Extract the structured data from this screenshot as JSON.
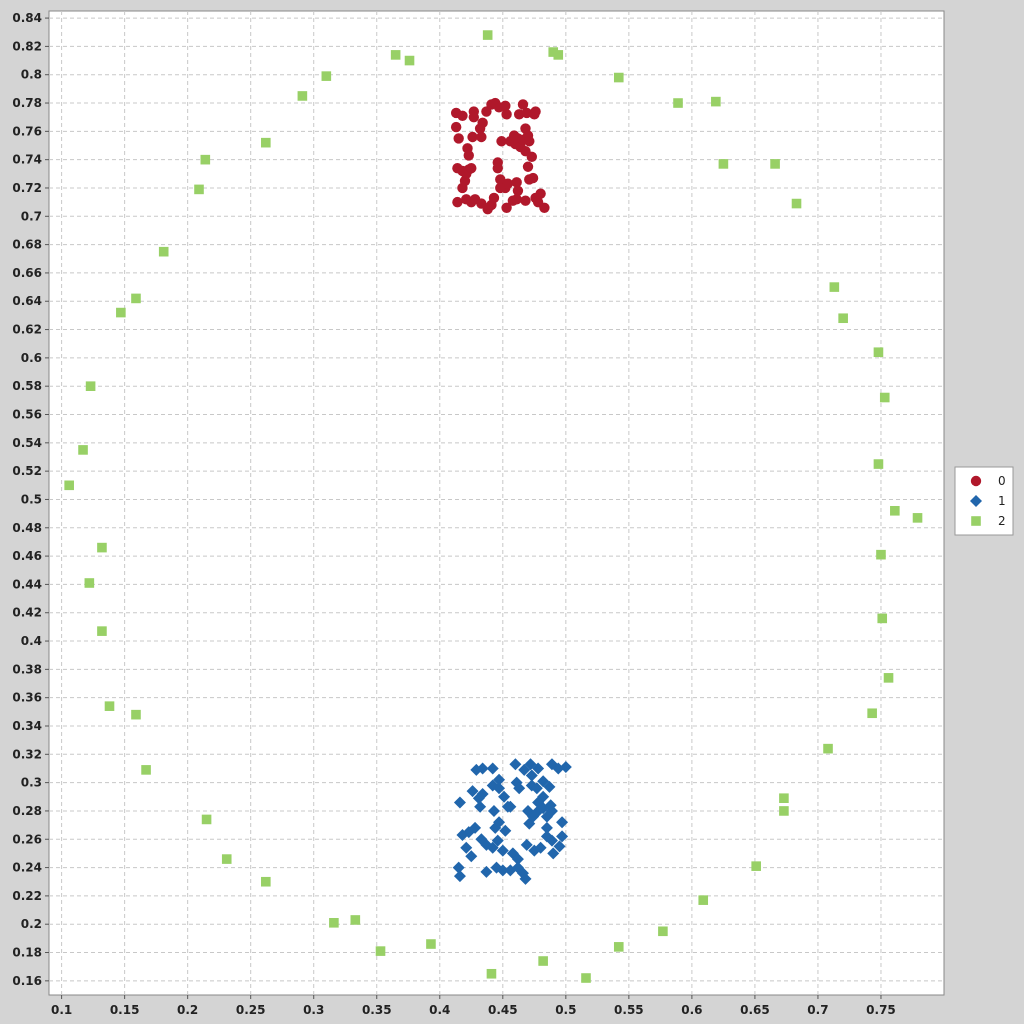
{
  "chart_data": {
    "type": "scatter",
    "title": "",
    "xlabel": "",
    "ylabel": "",
    "xlim": [
      0.09,
      0.8
    ],
    "ylim": [
      0.15,
      0.845
    ],
    "x_ticks": [
      0.1,
      0.15,
      0.2,
      0.25,
      0.3,
      0.35,
      0.4,
      0.45,
      0.5,
      0.55,
      0.6,
      0.65,
      0.7,
      0.75
    ],
    "x_tick_labels": [
      "0.1",
      "0.15",
      "0.2",
      "0.25",
      "0.3",
      "0.35",
      "0.4",
      "0.45",
      "0.5",
      "0.55",
      "0.6",
      "0.65",
      "0.7",
      "0.75"
    ],
    "y_ticks": [
      0.16,
      0.18,
      0.2,
      0.22,
      0.24,
      0.26,
      0.28,
      0.3,
      0.32,
      0.34,
      0.36,
      0.38,
      0.4,
      0.42,
      0.44,
      0.46,
      0.48,
      0.5,
      0.52,
      0.54,
      0.56,
      0.58,
      0.6,
      0.62,
      0.64,
      0.66,
      0.68,
      0.7,
      0.72,
      0.74,
      0.76,
      0.78,
      0.8,
      0.82,
      0.84
    ],
    "y_tick_labels": [
      "0.16",
      "0.18",
      "0.2",
      "0.22",
      "0.24",
      "0.26",
      "0.28",
      "0.3",
      "0.32",
      "0.34",
      "0.36",
      "0.38",
      "0.4",
      "0.42",
      "0.44",
      "0.46",
      "0.48",
      "0.5",
      "0.52",
      "0.54",
      "0.56",
      "0.58",
      "0.6",
      "0.62",
      "0.64",
      "0.66",
      "0.68",
      "0.7",
      "0.72",
      "0.74",
      "0.76",
      "0.78",
      "0.8",
      "0.82",
      "0.84"
    ],
    "grid": true,
    "legend_position": "right",
    "series": [
      {
        "name": "0",
        "marker": "circle",
        "color": "#b0182b",
        "points": [
          [
            0.413,
            0.773
          ],
          [
            0.418,
            0.771
          ],
          [
            0.427,
            0.774
          ],
          [
            0.427,
            0.77
          ],
          [
            0.437,
            0.774
          ],
          [
            0.441,
            0.779
          ],
          [
            0.444,
            0.78
          ],
          [
            0.447,
            0.777
          ],
          [
            0.452,
            0.778
          ],
          [
            0.453,
            0.772
          ],
          [
            0.463,
            0.772
          ],
          [
            0.466,
            0.779
          ],
          [
            0.469,
            0.773
          ],
          [
            0.475,
            0.772
          ],
          [
            0.476,
            0.774
          ],
          [
            0.413,
            0.763
          ],
          [
            0.415,
            0.755
          ],
          [
            0.422,
            0.748
          ],
          [
            0.423,
            0.743
          ],
          [
            0.426,
            0.756
          ],
          [
            0.432,
            0.762
          ],
          [
            0.434,
            0.766
          ],
          [
            0.433,
            0.756
          ],
          [
            0.449,
            0.753
          ],
          [
            0.456,
            0.753
          ],
          [
            0.459,
            0.757
          ],
          [
            0.46,
            0.751
          ],
          [
            0.462,
            0.755
          ],
          [
            0.464,
            0.749
          ],
          [
            0.466,
            0.754
          ],
          [
            0.468,
            0.762
          ],
          [
            0.47,
            0.757
          ],
          [
            0.471,
            0.753
          ],
          [
            0.468,
            0.746
          ],
          [
            0.473,
            0.742
          ],
          [
            0.414,
            0.734
          ],
          [
            0.418,
            0.732
          ],
          [
            0.418,
            0.72
          ],
          [
            0.42,
            0.725
          ],
          [
            0.421,
            0.73
          ],
          [
            0.423,
            0.733
          ],
          [
            0.425,
            0.734
          ],
          [
            0.446,
            0.738
          ],
          [
            0.446,
            0.734
          ],
          [
            0.448,
            0.726
          ],
          [
            0.452,
            0.72
          ],
          [
            0.454,
            0.723
          ],
          [
            0.461,
            0.724
          ],
          [
            0.462,
            0.718
          ],
          [
            0.47,
            0.735
          ],
          [
            0.471,
            0.726
          ],
          [
            0.474,
            0.727
          ],
          [
            0.414,
            0.71
          ],
          [
            0.421,
            0.712
          ],
          [
            0.425,
            0.71
          ],
          [
            0.428,
            0.712
          ],
          [
            0.433,
            0.709
          ],
          [
            0.438,
            0.705
          ],
          [
            0.441,
            0.708
          ],
          [
            0.443,
            0.713
          ],
          [
            0.448,
            0.72
          ],
          [
            0.453,
            0.706
          ],
          [
            0.458,
            0.711
          ],
          [
            0.461,
            0.712
          ],
          [
            0.468,
            0.711
          ],
          [
            0.476,
            0.713
          ],
          [
            0.478,
            0.71
          ],
          [
            0.48,
            0.716
          ],
          [
            0.483,
            0.706
          ]
        ]
      },
      {
        "name": "1",
        "marker": "diamond",
        "color": "#2166ac",
        "points": [
          [
            0.429,
            0.309
          ],
          [
            0.434,
            0.31
          ],
          [
            0.442,
            0.31
          ],
          [
            0.46,
            0.313
          ],
          [
            0.467,
            0.309
          ],
          [
            0.472,
            0.313
          ],
          [
            0.478,
            0.31
          ],
          [
            0.489,
            0.313
          ],
          [
            0.494,
            0.31
          ],
          [
            0.5,
            0.311
          ],
          [
            0.416,
            0.286
          ],
          [
            0.426,
            0.294
          ],
          [
            0.431,
            0.289
          ],
          [
            0.434,
            0.292
          ],
          [
            0.442,
            0.298
          ],
          [
            0.447,
            0.302
          ],
          [
            0.447,
            0.296
          ],
          [
            0.451,
            0.29
          ],
          [
            0.454,
            0.283
          ],
          [
            0.461,
            0.3
          ],
          [
            0.463,
            0.296
          ],
          [
            0.473,
            0.305
          ],
          [
            0.473,
            0.298
          ],
          [
            0.477,
            0.296
          ],
          [
            0.482,
            0.301
          ],
          [
            0.487,
            0.297
          ],
          [
            0.482,
            0.29
          ],
          [
            0.488,
            0.284
          ],
          [
            0.432,
            0.283
          ],
          [
            0.443,
            0.28
          ],
          [
            0.444,
            0.268
          ],
          [
            0.447,
            0.272
          ],
          [
            0.452,
            0.266
          ],
          [
            0.456,
            0.283
          ],
          [
            0.47,
            0.28
          ],
          [
            0.471,
            0.271
          ],
          [
            0.474,
            0.276
          ],
          [
            0.477,
            0.279
          ],
          [
            0.478,
            0.286
          ],
          [
            0.482,
            0.282
          ],
          [
            0.485,
            0.276
          ],
          [
            0.485,
            0.268
          ],
          [
            0.489,
            0.28
          ],
          [
            0.497,
            0.272
          ],
          [
            0.418,
            0.263
          ],
          [
            0.423,
            0.265
          ],
          [
            0.428,
            0.268
          ],
          [
            0.433,
            0.26
          ],
          [
            0.437,
            0.256
          ],
          [
            0.446,
            0.259
          ],
          [
            0.442,
            0.254
          ],
          [
            0.45,
            0.252
          ],
          [
            0.458,
            0.25
          ],
          [
            0.462,
            0.246
          ],
          [
            0.469,
            0.256
          ],
          [
            0.475,
            0.252
          ],
          [
            0.48,
            0.254
          ],
          [
            0.485,
            0.262
          ],
          [
            0.489,
            0.259
          ],
          [
            0.495,
            0.255
          ],
          [
            0.497,
            0.262
          ],
          [
            0.49,
            0.25
          ],
          [
            0.415,
            0.24
          ],
          [
            0.416,
            0.234
          ],
          [
            0.421,
            0.254
          ],
          [
            0.425,
            0.248
          ],
          [
            0.437,
            0.237
          ],
          [
            0.445,
            0.24
          ],
          [
            0.45,
            0.238
          ],
          [
            0.456,
            0.238
          ],
          [
            0.462,
            0.24
          ],
          [
            0.466,
            0.236
          ],
          [
            0.468,
            0.232
          ]
        ]
      },
      {
        "name": "2",
        "marker": "square",
        "color": "#98d066",
        "points": [
          [
            0.438,
            0.828
          ],
          [
            0.49,
            0.816
          ],
          [
            0.494,
            0.814
          ],
          [
            0.365,
            0.814
          ],
          [
            0.376,
            0.81
          ],
          [
            0.542,
            0.798
          ],
          [
            0.31,
            0.799
          ],
          [
            0.291,
            0.785
          ],
          [
            0.589,
            0.78
          ],
          [
            0.619,
            0.781
          ],
          [
            0.262,
            0.752
          ],
          [
            0.214,
            0.74
          ],
          [
            0.625,
            0.737
          ],
          [
            0.666,
            0.737
          ],
          [
            0.209,
            0.719
          ],
          [
            0.683,
            0.709
          ],
          [
            0.181,
            0.675
          ],
          [
            0.713,
            0.65
          ],
          [
            0.159,
            0.642
          ],
          [
            0.147,
            0.632
          ],
          [
            0.72,
            0.628
          ],
          [
            0.748,
            0.604
          ],
          [
            0.123,
            0.58
          ],
          [
            0.753,
            0.572
          ],
          [
            0.117,
            0.535
          ],
          [
            0.748,
            0.525
          ],
          [
            0.106,
            0.51
          ],
          [
            0.761,
            0.492
          ],
          [
            0.779,
            0.487
          ],
          [
            0.132,
            0.466
          ],
          [
            0.75,
            0.461
          ],
          [
            0.122,
            0.441
          ],
          [
            0.751,
            0.416
          ],
          [
            0.132,
            0.407
          ],
          [
            0.756,
            0.374
          ],
          [
            0.138,
            0.354
          ],
          [
            0.159,
            0.348
          ],
          [
            0.743,
            0.349
          ],
          [
            0.708,
            0.324
          ],
          [
            0.167,
            0.309
          ],
          [
            0.673,
            0.289
          ],
          [
            0.673,
            0.28
          ],
          [
            0.215,
            0.274
          ],
          [
            0.231,
            0.246
          ],
          [
            0.651,
            0.241
          ],
          [
            0.262,
            0.23
          ],
          [
            0.609,
            0.217
          ],
          [
            0.316,
            0.201
          ],
          [
            0.333,
            0.203
          ],
          [
            0.577,
            0.195
          ],
          [
            0.393,
            0.186
          ],
          [
            0.542,
            0.184
          ],
          [
            0.353,
            0.181
          ],
          [
            0.482,
            0.174
          ],
          [
            0.441,
            0.165
          ],
          [
            0.516,
            0.162
          ]
        ]
      }
    ]
  }
}
